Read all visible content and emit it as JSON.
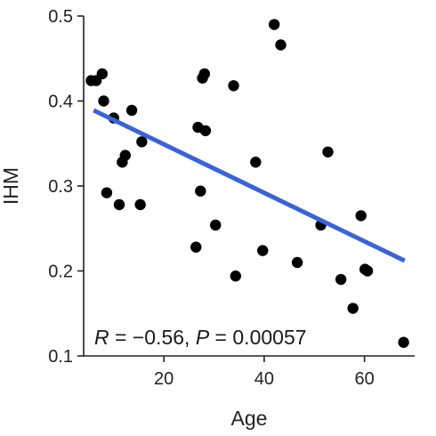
{
  "chart_data": {
    "type": "scatter",
    "title": "",
    "xlabel": "Age",
    "ylabel": "IHM",
    "xlim": [
      4,
      70
    ],
    "ylim": [
      0.1,
      0.5
    ],
    "x_ticks": [
      20,
      40,
      60
    ],
    "x_tick_labels": [
      "20",
      "40",
      "60"
    ],
    "y_ticks": [
      0.1,
      0.2,
      0.3,
      0.4,
      0.5
    ],
    "y_tick_labels": [
      "0.1",
      "0.2",
      "0.3",
      "0.4",
      "0.5"
    ],
    "grid": false,
    "legend": "none",
    "point_color": "#000000",
    "series": [
      {
        "points": [
          {
            "x": 5.5,
            "y": 0.424
          },
          {
            "x": 6.5,
            "y": 0.424
          },
          {
            "x": 7.7,
            "y": 0.432
          },
          {
            "x": 8.0,
            "y": 0.4
          },
          {
            "x": 8.6,
            "y": 0.292
          },
          {
            "x": 10.0,
            "y": 0.38
          },
          {
            "x": 11.1,
            "y": 0.278
          },
          {
            "x": 11.7,
            "y": 0.328
          },
          {
            "x": 12.3,
            "y": 0.336
          },
          {
            "x": 13.6,
            "y": 0.389
          },
          {
            "x": 15.3,
            "y": 0.278
          },
          {
            "x": 15.6,
            "y": 0.352
          },
          {
            "x": 26.4,
            "y": 0.228
          },
          {
            "x": 26.8,
            "y": 0.369
          },
          {
            "x": 27.3,
            "y": 0.294
          },
          {
            "x": 27.7,
            "y": 0.427
          },
          {
            "x": 28.1,
            "y": 0.432
          },
          {
            "x": 28.3,
            "y": 0.365
          },
          {
            "x": 30.3,
            "y": 0.254
          },
          {
            "x": 33.9,
            "y": 0.418
          },
          {
            "x": 34.3,
            "y": 0.194
          },
          {
            "x": 38.3,
            "y": 0.328
          },
          {
            "x": 39.7,
            "y": 0.224
          },
          {
            "x": 42.0,
            "y": 0.49
          },
          {
            "x": 43.3,
            "y": 0.466
          },
          {
            "x": 46.6,
            "y": 0.21
          },
          {
            "x": 51.3,
            "y": 0.254
          },
          {
            "x": 52.7,
            "y": 0.34
          },
          {
            "x": 55.3,
            "y": 0.19
          },
          {
            "x": 57.7,
            "y": 0.156
          },
          {
            "x": 59.3,
            "y": 0.265
          },
          {
            "x": 60.1,
            "y": 0.202
          },
          {
            "x": 60.6,
            "y": 0.2
          },
          {
            "x": 67.8,
            "y": 0.116
          }
        ]
      }
    ],
    "trendline": {
      "color": "#3B63D9",
      "x": [
        6.0,
        68.0
      ],
      "y": [
        0.389,
        0.212
      ]
    },
    "annotation": {
      "r_symbol": "R",
      "r_text": " = −0.56, ",
      "p_symbol": "P",
      "p_text": " = 0.00057"
    }
  }
}
